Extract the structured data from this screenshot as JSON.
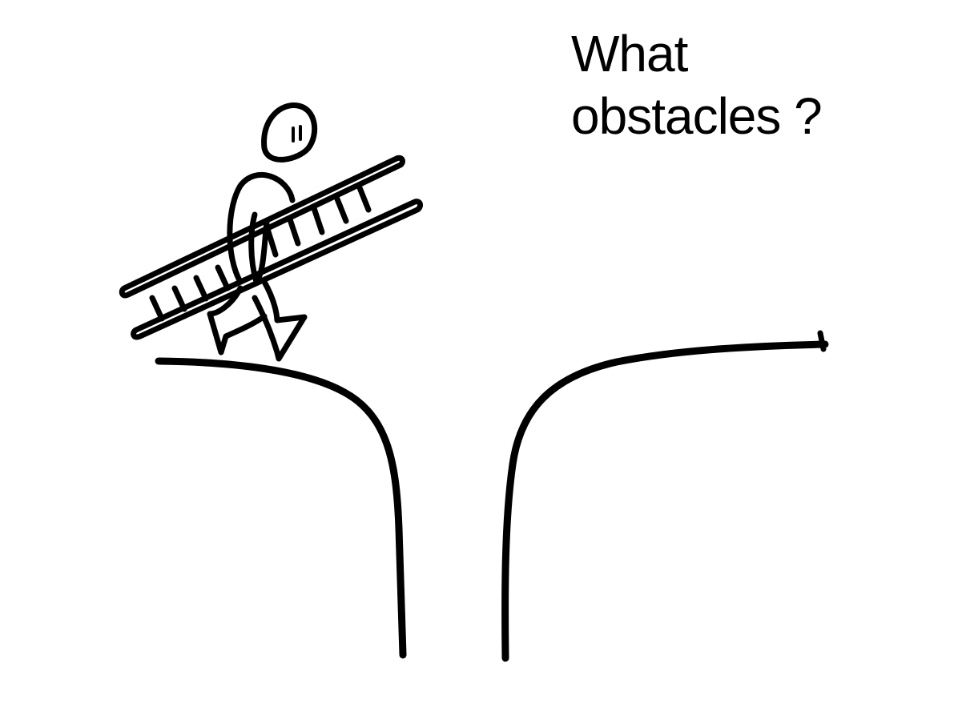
{
  "caption": {
    "line1": "What",
    "line2": "obstacles ?"
  },
  "colors": {
    "ink": "#000000",
    "paper": "#ffffff"
  },
  "icons": {
    "figure": "stick-figure-carrying-ladder-icon",
    "cliff": "chasm-gap-icon"
  }
}
